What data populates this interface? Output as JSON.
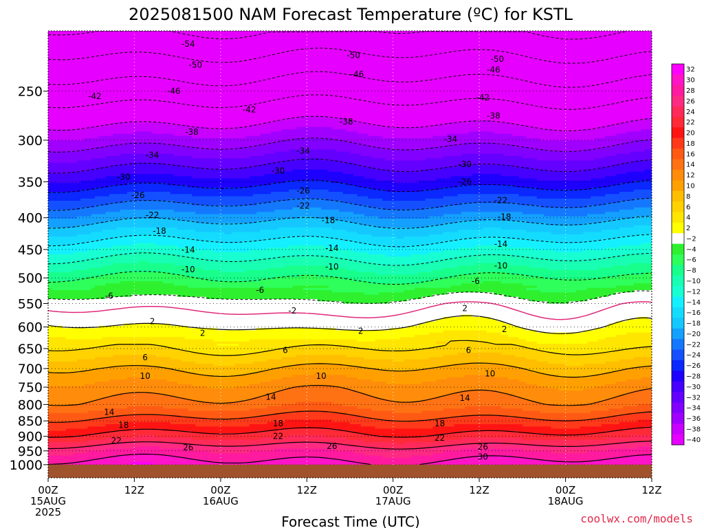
{
  "chart_data": {
    "type": "heatmap",
    "title": "2025081500 NAM Forecast Temperature (ºC) for KSTL",
    "xlabel": "Forecast Time (UTC)",
    "ylabel": "",
    "credit": "coolwx.com/models",
    "x_range_hours": [
      0,
      84
    ],
    "y_range_hPa": [
      1050,
      200
    ],
    "y_scale": "log",
    "y_ticks": [
      250,
      300,
      350,
      400,
      450,
      500,
      550,
      600,
      650,
      700,
      750,
      800,
      850,
      900,
      950,
      1000
    ],
    "x_ticks": [
      {
        "hour": 0,
        "line1": "00Z",
        "line2": "15AUG",
        "line3": "2025"
      },
      {
        "hour": 12,
        "line1": "12Z",
        "line2": "",
        "line3": ""
      },
      {
        "hour": 24,
        "line1": "00Z",
        "line2": "16AUG",
        "line3": ""
      },
      {
        "hour": 36,
        "line1": "12Z",
        "line2": "",
        "line3": ""
      },
      {
        "hour": 48,
        "line1": "00Z",
        "line2": "17AUG",
        "line3": ""
      },
      {
        "hour": 60,
        "line1": "12Z",
        "line2": "",
        "line3": ""
      },
      {
        "hour": 72,
        "line1": "00Z",
        "line2": "18AUG",
        "line3": ""
      },
      {
        "hour": 84,
        "line1": "12Z",
        "line2": "",
        "line3": ""
      }
    ],
    "grid": "dotted",
    "surface_pressure_hPa": 1000,
    "colorbar": {
      "levels": [
        32,
        30,
        28,
        26,
        24,
        22,
        20,
        18,
        16,
        14,
        12,
        10,
        8,
        6,
        4,
        2,
        -2,
        -4,
        -6,
        -8,
        -10,
        -12,
        -14,
        -16,
        -18,
        -20,
        -22,
        -24,
        -26,
        -28,
        -30,
        -32,
        -34,
        -36,
        -38,
        -40
      ],
      "labels": [
        "32",
        "30",
        "28",
        "26",
        "24",
        "22",
        "20",
        "18",
        "16",
        "14",
        "12",
        "10",
        "8",
        "6",
        "4",
        "2",
        "−2",
        "−4",
        "−6",
        "−8",
        "−10",
        "−12",
        "−14",
        "−16",
        "−18",
        "−20",
        "−22",
        "−24",
        "−26",
        "−28",
        "−30",
        "−32",
        "−34",
        "−36",
        "−38",
        "−40"
      ],
      "colors": [
        "#ff00ff",
        "#ff14c8",
        "#ff1aa0",
        "#ff2a82",
        "#ff2a5a",
        "#ff2a38",
        "#ff1414",
        "#ff3a1a",
        "#ff5a14",
        "#ff7214",
        "#ff8c0a",
        "#ffa000",
        "#ffbe00",
        "#ffd200",
        "#ffe600",
        "#ffff00",
        "#ffffff",
        "#2ef02e",
        "#2eff5a",
        "#18ff8c",
        "#18ffb4",
        "#18ffd2",
        "#14f0ff",
        "#14dcff",
        "#14c8ff",
        "#14a0ff",
        "#1478ff",
        "#1450ff",
        "#0a28ff",
        "#1e00ff",
        "#4600ff",
        "#6400ff",
        "#8200ff",
        "#a000ff",
        "#c800ff",
        "#e600ff"
      ]
    },
    "temperature_profile": {
      "pressure_hPa": [
        200,
        250,
        300,
        350,
        400,
        450,
        500,
        550,
        600,
        650,
        700,
        750,
        800,
        850,
        900,
        950,
        1000
      ],
      "temp_C_at_00Z_15AUG": [
        -54,
        -44,
        -35,
        -27,
        -19,
        -12,
        -6,
        -1,
        2,
        6,
        10,
        13,
        15,
        19,
        23,
        28,
        31
      ]
    },
    "contour_labels": [
      {
        "t": "-54",
        "h": 19.5,
        "p": 210
      },
      {
        "t": "-50",
        "h": 20.5,
        "p": 227
      },
      {
        "t": "-50",
        "h": 42.5,
        "p": 219
      },
      {
        "t": "-50",
        "h": 62.5,
        "p": 222
      },
      {
        "t": "-46",
        "h": 17.5,
        "p": 250
      },
      {
        "t": "-46",
        "h": 43.0,
        "p": 235
      },
      {
        "t": "-46",
        "h": 62.0,
        "p": 231
      },
      {
        "t": "-42",
        "h": 6.5,
        "p": 255
      },
      {
        "t": "-42",
        "h": 28.0,
        "p": 268
      },
      {
        "t": "-42",
        "h": 60.5,
        "p": 256
      },
      {
        "t": "-38",
        "h": 20.0,
        "p": 291
      },
      {
        "t": "-38",
        "h": 41.5,
        "p": 280
      },
      {
        "t": "-38",
        "h": 62.0,
        "p": 274
      },
      {
        "t": "-34",
        "h": 14.5,
        "p": 317
      },
      {
        "t": "-34",
        "h": 35.5,
        "p": 312
      },
      {
        "t": "-34",
        "h": 56.0,
        "p": 299
      },
      {
        "t": "-30",
        "h": 10.5,
        "p": 344
      },
      {
        "t": "-30",
        "h": 32.0,
        "p": 336
      },
      {
        "t": "-30",
        "h": 58.0,
        "p": 328
      },
      {
        "t": "-26",
        "h": 12.5,
        "p": 368
      },
      {
        "t": "-26",
        "h": 35.5,
        "p": 362
      },
      {
        "t": "-26",
        "h": 58.0,
        "p": 350
      },
      {
        "t": "-22",
        "h": 14.5,
        "p": 396
      },
      {
        "t": "-22",
        "h": 35.5,
        "p": 383
      },
      {
        "t": "-22",
        "h": 63.0,
        "p": 375
      },
      {
        "t": "-18",
        "h": 15.5,
        "p": 420
      },
      {
        "t": "-18",
        "h": 39.0,
        "p": 404
      },
      {
        "t": "-18",
        "h": 63.5,
        "p": 399
      },
      {
        "t": "-14",
        "h": 19.5,
        "p": 451
      },
      {
        "t": "-14",
        "h": 39.5,
        "p": 448
      },
      {
        "t": "-14",
        "h": 63.0,
        "p": 441
      },
      {
        "t": "-10",
        "h": 19.5,
        "p": 485
      },
      {
        "t": "-10",
        "h": 39.5,
        "p": 480
      },
      {
        "t": "-10",
        "h": 63.0,
        "p": 478
      },
      {
        "t": "-6",
        "h": 8.5,
        "p": 535
      },
      {
        "t": "-6",
        "h": 29.5,
        "p": 523
      },
      {
        "t": "-6",
        "h": 59.5,
        "p": 506
      },
      {
        "t": "-2",
        "h": 34.0,
        "p": 565
      },
      {
        "t": "2",
        "h": 14.5,
        "p": 588
      },
      {
        "t": "2",
        "h": 58.0,
        "p": 560
      },
      {
        "t": "2",
        "h": 21.5,
        "p": 614
      },
      {
        "t": "2",
        "h": 43.5,
        "p": 609
      },
      {
        "t": "2",
        "h": 63.5,
        "p": 605
      },
      {
        "t": "6",
        "h": 13.5,
        "p": 672
      },
      {
        "t": "6",
        "h": 33.0,
        "p": 654
      },
      {
        "t": "6",
        "h": 58.5,
        "p": 654
      },
      {
        "t": "10",
        "h": 13.5,
        "p": 720
      },
      {
        "t": "10",
        "h": 38.0,
        "p": 720
      },
      {
        "t": "10",
        "h": 61.5,
        "p": 713
      },
      {
        "t": "14",
        "h": 8.5,
        "p": 823
      },
      {
        "t": "14",
        "h": 31.0,
        "p": 778
      },
      {
        "t": "14",
        "h": 58.0,
        "p": 781
      },
      {
        "t": "18",
        "h": 10.5,
        "p": 864
      },
      {
        "t": "18",
        "h": 32.0,
        "p": 858
      },
      {
        "t": "18",
        "h": 54.5,
        "p": 858
      },
      {
        "t": "22",
        "h": 9.5,
        "p": 915
      },
      {
        "t": "22",
        "h": 32.0,
        "p": 900
      },
      {
        "t": "22",
        "h": 54.5,
        "p": 906
      },
      {
        "t": "26",
        "h": 19.5,
        "p": 939
      },
      {
        "t": "26",
        "h": 39.5,
        "p": 934
      },
      {
        "t": "26",
        "h": 60.5,
        "p": 936
      },
      {
        "t": "30",
        "h": 60.5,
        "p": 971
      }
    ]
  },
  "axis_labels": {
    "y_tick_labels": [
      "250",
      "300",
      "350",
      "400",
      "450",
      "500",
      "550",
      "600",
      "650",
      "700",
      "750",
      "800",
      "850",
      "900",
      "950",
      "1000"
    ]
  }
}
